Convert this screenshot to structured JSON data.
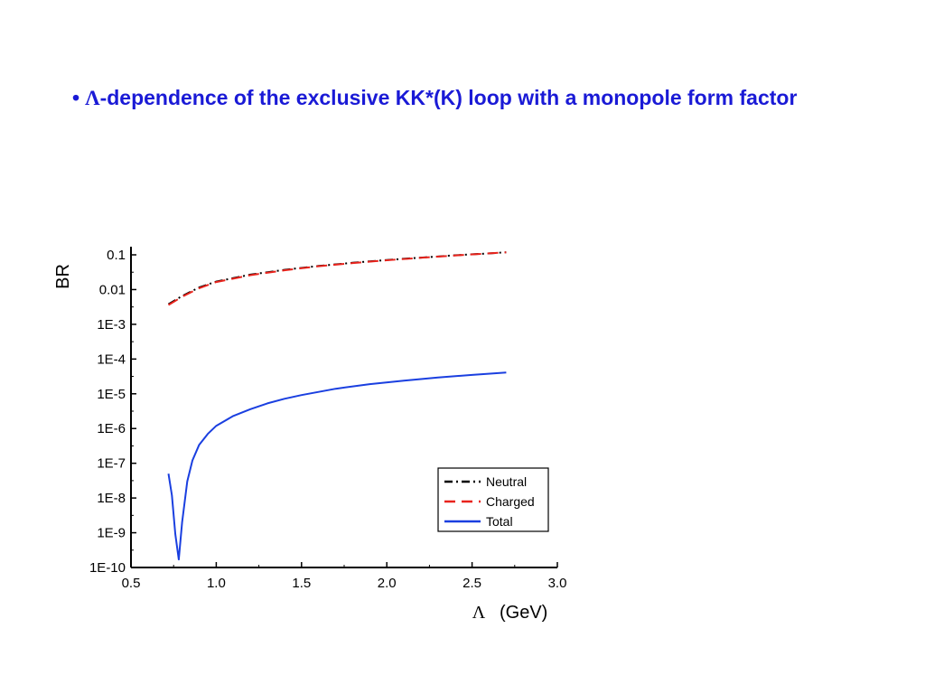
{
  "slide": {
    "bullet": "•",
    "lambda": "Λ",
    "title_rest": "-dependence of the exclusive KK*(K) loop with a monopole form factor",
    "title_color": "#1a1ad6"
  },
  "chart_data": {
    "type": "line",
    "xlabel_symbol": "Λ",
    "xlabel": "(GeV)",
    "ylabel": "BR",
    "xlim": [
      0.5,
      3.0
    ],
    "ylim": [
      1e-10,
      0.1
    ],
    "y_scale": "log",
    "x_ticks": [
      "0.5",
      "1.0",
      "1.5",
      "2.0",
      "2.5",
      "3.0"
    ],
    "y_ticks": [
      "0.1",
      "0.01",
      "1E-3",
      "1E-4",
      "1E-5",
      "1E-6",
      "1E-7",
      "1E-8",
      "1E-9",
      "1E-10"
    ],
    "grid": false,
    "legend_position": "bottom-right",
    "series": [
      {
        "name": "Neutral",
        "color": "#000000",
        "style": "dash-dot",
        "x": [
          0.72,
          0.8,
          0.9,
          1.0,
          1.2,
          1.4,
          1.6,
          1.8,
          2.0,
          2.2,
          2.4,
          2.6,
          2.7
        ],
        "y": [
          0.0038,
          0.0065,
          0.0115,
          0.017,
          0.027,
          0.037,
          0.048,
          0.059,
          0.071,
          0.083,
          0.097,
          0.11,
          0.118
        ]
      },
      {
        "name": "Charged",
        "color": "#e8231c",
        "style": "dashed",
        "x": [
          0.72,
          0.8,
          0.9,
          1.0,
          1.2,
          1.4,
          1.6,
          1.8,
          2.0,
          2.2,
          2.4,
          2.6,
          2.7
        ],
        "y": [
          0.0036,
          0.0062,
          0.011,
          0.0165,
          0.026,
          0.036,
          0.047,
          0.058,
          0.07,
          0.082,
          0.096,
          0.11,
          0.118
        ]
      },
      {
        "name": "Total",
        "color": "#1a3fe0",
        "style": "solid",
        "x": [
          0.72,
          0.74,
          0.76,
          0.78,
          0.8,
          0.83,
          0.86,
          0.9,
          0.95,
          1.0,
          1.1,
          1.2,
          1.3,
          1.4,
          1.5,
          1.7,
          1.9,
          2.1,
          2.3,
          2.5,
          2.7
        ],
        "y": [
          5e-08,
          1.2e-08,
          9e-10,
          1.7e-10,
          2e-09,
          3e-08,
          1.2e-07,
          3.4e-07,
          7e-07,
          1.2e-06,
          2.3e-06,
          3.6e-06,
          5.3e-06,
          7.2e-06,
          9.2e-06,
          1.4e-05,
          1.9e-05,
          2.4e-05,
          2.95e-05,
          3.5e-05,
          4.1e-05
        ]
      }
    ]
  }
}
